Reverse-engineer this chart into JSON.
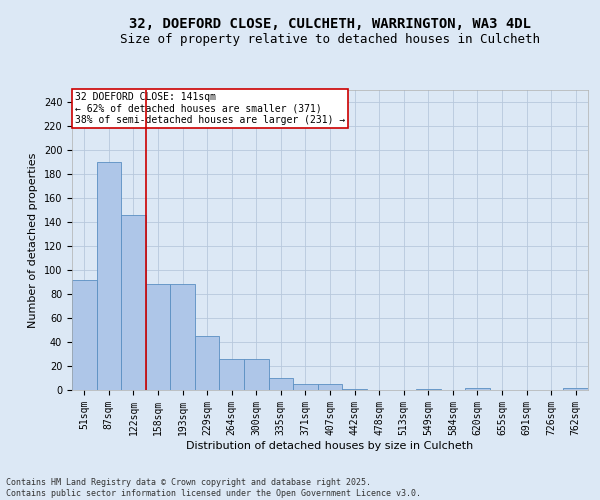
{
  "title1": "32, DOEFORD CLOSE, CULCHETH, WARRINGTON, WA3 4DL",
  "title2": "Size of property relative to detached houses in Culcheth",
  "xlabel": "Distribution of detached houses by size in Culcheth",
  "ylabel": "Number of detached properties",
  "footer": "Contains HM Land Registry data © Crown copyright and database right 2025.\nContains public sector information licensed under the Open Government Licence v3.0.",
  "categories": [
    "51sqm",
    "87sqm",
    "122sqm",
    "158sqm",
    "193sqm",
    "229sqm",
    "264sqm",
    "300sqm",
    "335sqm",
    "371sqm",
    "407sqm",
    "442sqm",
    "478sqm",
    "513sqm",
    "549sqm",
    "584sqm",
    "620sqm",
    "655sqm",
    "691sqm",
    "726sqm",
    "762sqm"
  ],
  "values": [
    92,
    190,
    146,
    88,
    88,
    45,
    26,
    26,
    10,
    5,
    5,
    1,
    0,
    0,
    1,
    0,
    2,
    0,
    0,
    0,
    2
  ],
  "bar_color": "#aec6e8",
  "bar_edge_color": "#5a8fc2",
  "ylim": [
    0,
    250
  ],
  "yticks": [
    0,
    20,
    40,
    60,
    80,
    100,
    120,
    140,
    160,
    180,
    200,
    220,
    240
  ],
  "red_line_x": 2.5,
  "annotation_text": "32 DOEFORD CLOSE: 141sqm\n← 62% of detached houses are smaller (371)\n38% of semi-detached houses are larger (231) →",
  "annotation_box_color": "#ffffff",
  "annotation_box_edge": "#cc0000",
  "red_line_color": "#cc0000",
  "background_color": "#dce8f5",
  "plot_bg_color": "#dce8f5",
  "title_fontsize": 10,
  "subtitle_fontsize": 9,
  "axis_fontsize": 8,
  "tick_fontsize": 7,
  "annot_fontsize": 7
}
